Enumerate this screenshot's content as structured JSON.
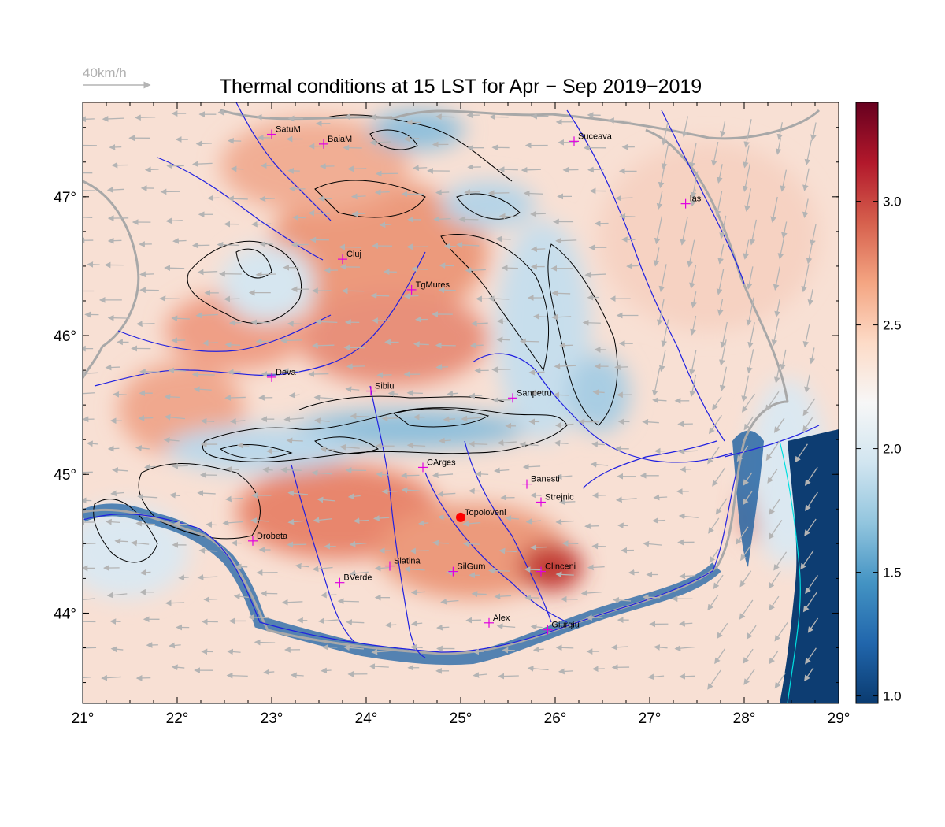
{
  "figure": {
    "title": "Thermal conditions at 15 LST for Apr − Sep  2019−2019",
    "wind_scale_label": "40km/h",
    "x_axis": {
      "range": [
        21,
        29
      ],
      "ticks": [
        "21°",
        "22°",
        "23°",
        "24°",
        "25°",
        "26°",
        "27°",
        "28°",
        "29°"
      ]
    },
    "y_axis": {
      "range": [
        43.35,
        47.68
      ],
      "ticks": [
        "44°",
        "45°",
        "46°",
        "47°"
      ],
      "tick_values": [
        44,
        45,
        46,
        47
      ]
    },
    "colorbar": {
      "range": [
        0.97,
        3.4
      ],
      "ticks": [
        "1.0",
        "1.5",
        "2.0",
        "2.5",
        "3.0"
      ],
      "tick_values": [
        1.0,
        1.5,
        2.0,
        2.5,
        3.0
      ],
      "colors": [
        "#0a3b70",
        "#2166ac",
        "#4393c3",
        "#92c5de",
        "#d1e5f0",
        "#f7f7f7",
        "#fddbc7",
        "#f4a582",
        "#d6604d",
        "#b2182b",
        "#67001f"
      ]
    },
    "colors": {
      "river": "#2020e0",
      "border": "#a8a8a8",
      "station_marker": "#e000e0",
      "highlight_station": "#ff0000",
      "contour": "#000000",
      "wind_arrow": "#b4b4b4"
    }
  },
  "stations": [
    {
      "name": "SatuM",
      "lon": 23.0,
      "lat": 47.45
    },
    {
      "name": "BaiaM",
      "lon": 23.55,
      "lat": 47.38
    },
    {
      "name": "Suceava",
      "lon": 26.2,
      "lat": 47.4
    },
    {
      "name": "Iasi",
      "lon": 27.38,
      "lat": 46.95
    },
    {
      "name": "Cluj",
      "lon": 23.75,
      "lat": 46.55
    },
    {
      "name": "TgMures",
      "lon": 24.48,
      "lat": 46.33
    },
    {
      "name": "Deva",
      "lon": 23.0,
      "lat": 45.7
    },
    {
      "name": "Sibiu",
      "lon": 24.05,
      "lat": 45.6
    },
    {
      "name": "Sanpetru",
      "lon": 25.55,
      "lat": 45.55
    },
    {
      "name": "CArges",
      "lon": 24.6,
      "lat": 45.05
    },
    {
      "name": "Banesti",
      "lon": 25.7,
      "lat": 44.93
    },
    {
      "name": "Strejnic",
      "lon": 25.85,
      "lat": 44.8
    },
    {
      "name": "Topoloveni",
      "lon": 25.0,
      "lat": 44.69,
      "highlight": true
    },
    {
      "name": "Drobeta",
      "lon": 22.8,
      "lat": 44.52
    },
    {
      "name": "Slatina",
      "lon": 24.25,
      "lat": 44.34
    },
    {
      "name": "SilGum",
      "lon": 24.92,
      "lat": 44.3
    },
    {
      "name": "Clinceni",
      "lon": 25.85,
      "lat": 44.3
    },
    {
      "name": "BVerde",
      "lon": 23.72,
      "lat": 44.22
    },
    {
      "name": "Alex",
      "lon": 25.3,
      "lat": 43.93
    },
    {
      "name": "Giurgiu",
      "lon": 25.92,
      "lat": 43.88
    }
  ]
}
